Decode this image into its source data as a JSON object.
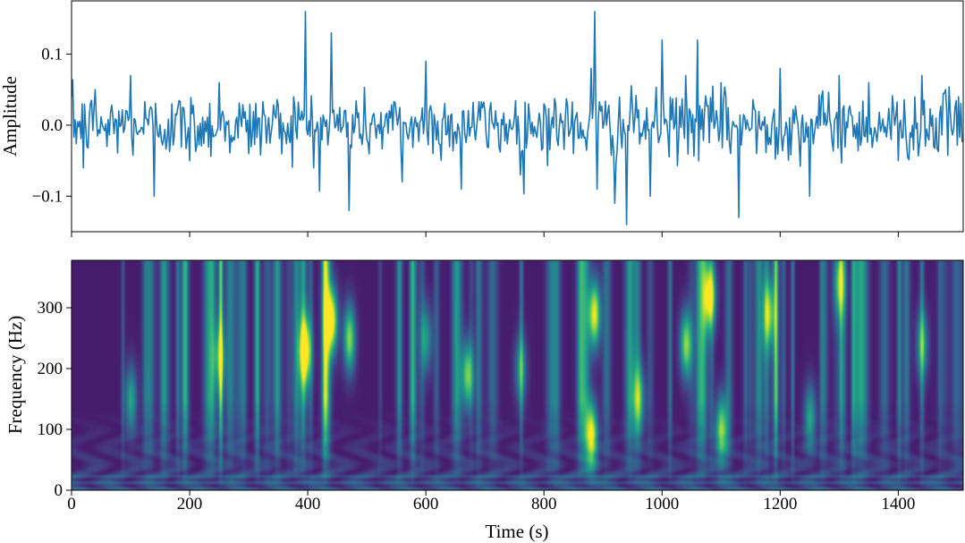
{
  "chart_data": [
    {
      "type": "line",
      "panel": "waveform",
      "title": "",
      "xlabel": "",
      "ylabel": "Amplitude",
      "xlim": [
        0,
        1510
      ],
      "ylim": [
        -0.15,
        0.175
      ],
      "y_ticks": [
        -0.1,
        0.0,
        0.1
      ],
      "y_tick_labels": [
        "−0.1",
        "0.0",
        "0.1"
      ],
      "x_ticks": [
        0,
        200,
        400,
        600,
        800,
        1000,
        1200,
        1400
      ],
      "x_tick_labels_visible": false,
      "grid": false,
      "line_color": "#1f77b4",
      "noise_std": 0.023,
      "series": [
        {
          "x": [
            0,
            20,
            40,
            60,
            80,
            100,
            110,
            140,
            170,
            200,
            250,
            300,
            345,
            375,
            395,
            410,
            440,
            470,
            500,
            560,
            600,
            660,
            700,
            760,
            800,
            850,
            880,
            885,
            890,
            920,
            940,
            980,
            1000,
            1040,
            1060,
            1100,
            1130,
            1160,
            1200,
            1250,
            1300,
            1350,
            1400,
            1440,
            1480,
            1510
          ],
          "values": [
            0.04,
            -0.06,
            0.05,
            -0.03,
            0.02,
            0.07,
            -0.01,
            -0.1,
            0.03,
            -0.05,
            0.06,
            -0.04,
            0.01,
            0.04,
            0.16,
            -0.06,
            0.13,
            -0.12,
            -0.02,
            -0.08,
            0.09,
            -0.09,
            0.02,
            -0.07,
            0.03,
            -0.04,
            0.08,
            0.16,
            -0.09,
            -0.11,
            -0.14,
            -0.1,
            0.12,
            0.07,
            0.12,
            0.06,
            -0.13,
            -0.04,
            0.08,
            -0.1,
            0.07,
            0.06,
            -0.05,
            0.07,
            0.05,
            -0.02
          ]
        }
      ]
    },
    {
      "type": "heatmap",
      "panel": "scalogram",
      "title": "",
      "xlabel": "Time (s)",
      "ylabel": "Frequency (Hz)",
      "xlim": [
        0,
        1510
      ],
      "ylim": [
        0,
        378
      ],
      "x_ticks": [
        0,
        200,
        400,
        600,
        800,
        1000,
        1200,
        1400
      ],
      "x_tick_labels": [
        "0",
        "200",
        "400",
        "600",
        "800",
        "1000",
        "1200",
        "1400"
      ],
      "y_ticks": [
        0,
        100,
        200,
        300
      ],
      "y_tick_labels": [
        "0",
        "100",
        "200",
        "300"
      ],
      "colormap": "viridis",
      "colormap_stops": [
        "#440154",
        "#472d7b",
        "#3b528b",
        "#2c728e",
        "#21918c",
        "#28ae80",
        "#5ec962",
        "#addc30",
        "#fde725"
      ],
      "intensity_range": [
        0,
        1
      ],
      "grid": false,
      "hotspots": [
        {
          "t": 395,
          "f": 230,
          "intensity": 0.95
        },
        {
          "t": 440,
          "f": 280,
          "intensity": 0.95
        },
        {
          "t": 470,
          "f": 250,
          "intensity": 0.75
        },
        {
          "t": 670,
          "f": 190,
          "intensity": 0.7
        },
        {
          "t": 880,
          "f": 90,
          "intensity": 0.9
        },
        {
          "t": 885,
          "f": 290,
          "intensity": 0.9
        },
        {
          "t": 1040,
          "f": 240,
          "intensity": 0.75
        },
        {
          "t": 1080,
          "f": 320,
          "intensity": 0.9
        },
        {
          "t": 1100,
          "f": 100,
          "intensity": 0.75
        },
        {
          "t": 1180,
          "f": 290,
          "intensity": 0.65
        },
        {
          "t": 1300,
          "f": 340,
          "intensity": 0.55
        },
        {
          "t": 1440,
          "f": 240,
          "intensity": 0.5
        },
        {
          "t": 100,
          "f": 150,
          "intensity": 0.5
        },
        {
          "t": 250,
          "f": 220,
          "intensity": 0.5
        },
        {
          "t": 600,
          "f": 250,
          "intensity": 0.45
        },
        {
          "t": 760,
          "f": 200,
          "intensity": 0.45
        },
        {
          "t": 960,
          "f": 150,
          "intensity": 0.55
        },
        {
          "t": 1250,
          "f": 120,
          "intensity": 0.5
        }
      ]
    }
  ]
}
